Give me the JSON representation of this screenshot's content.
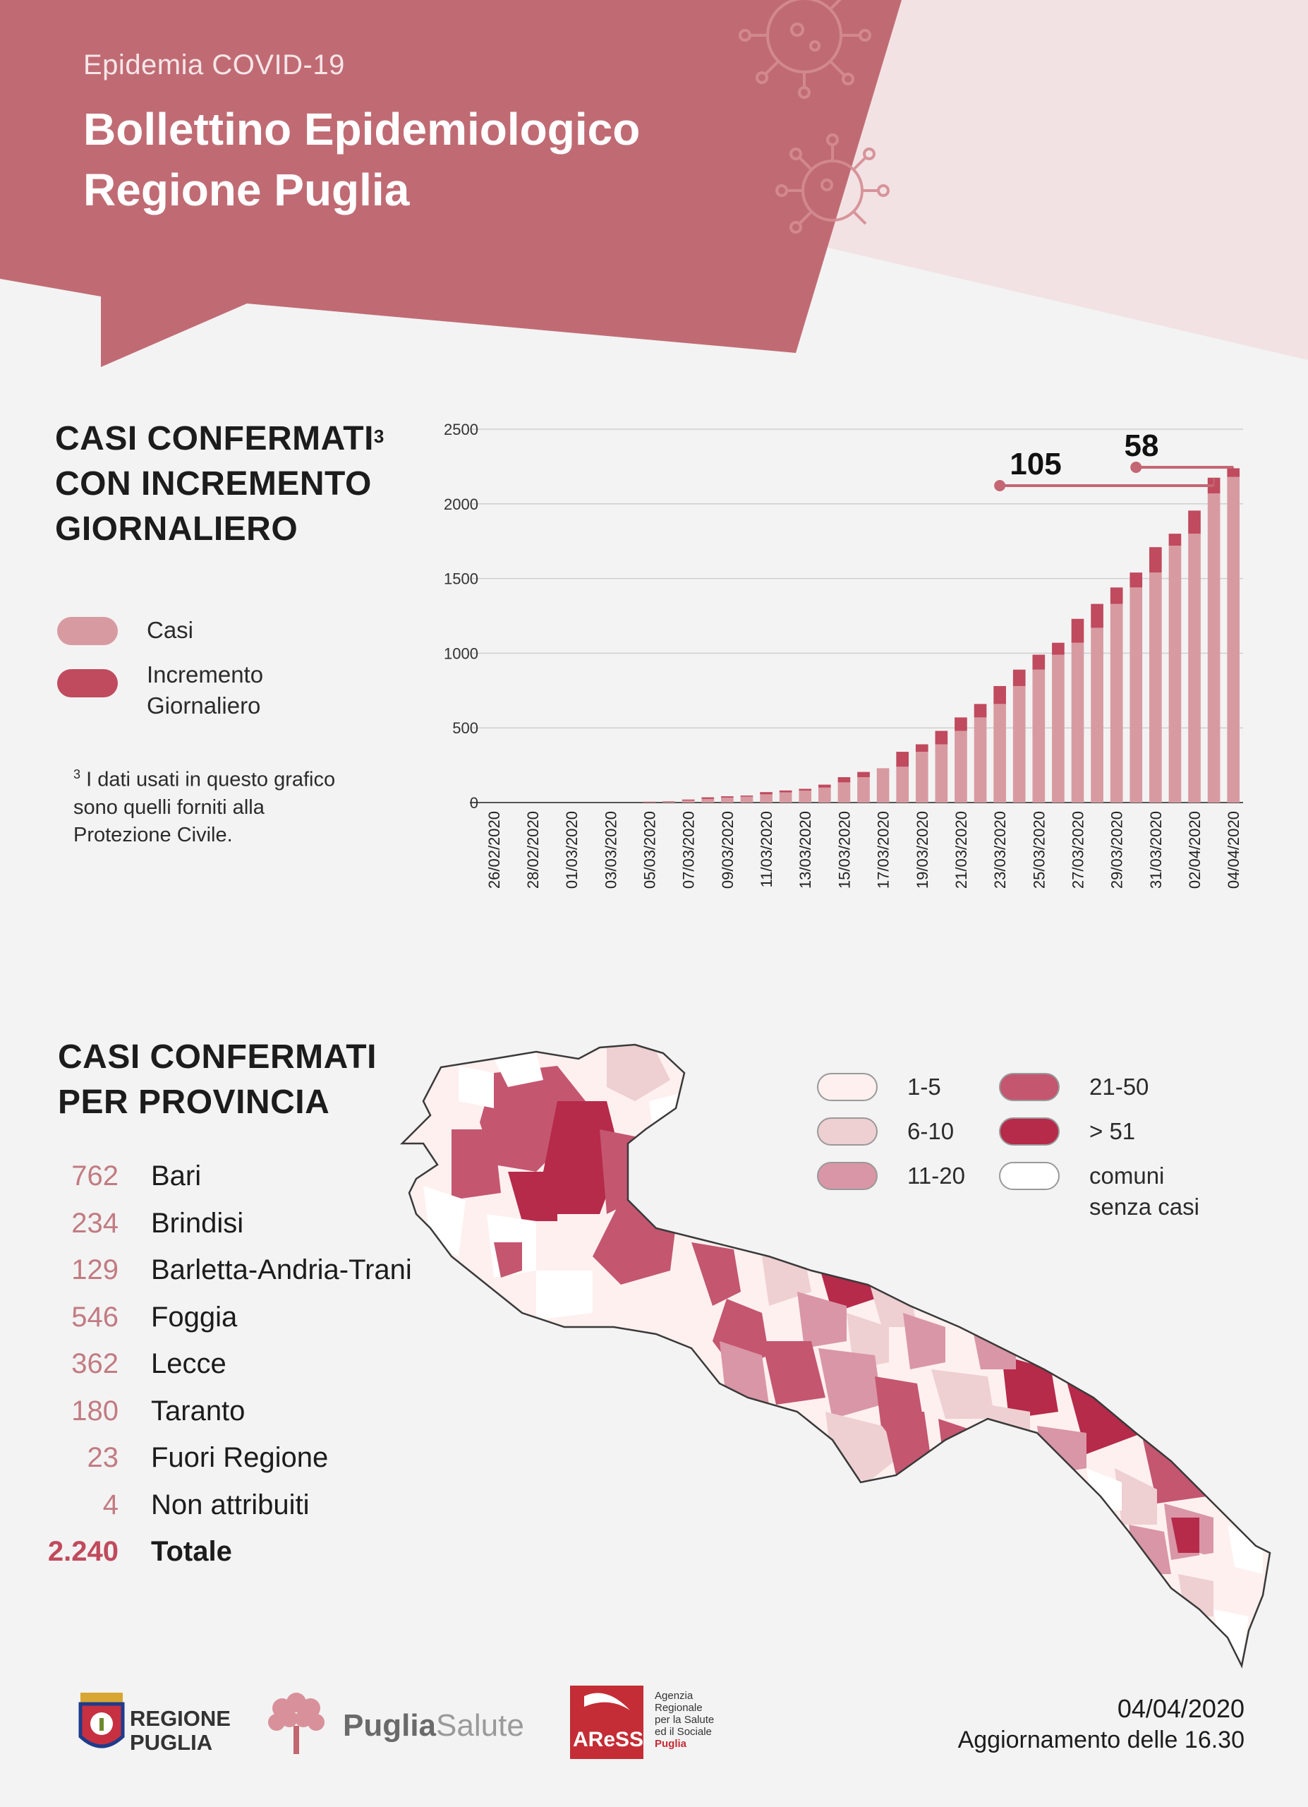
{
  "header": {
    "eyebrow": "Epidemia COVID-19",
    "title_line1": "Bollettino Epidemiologico",
    "title_line2": "Regione Puglia"
  },
  "colors": {
    "header_bg": "#c06b74",
    "header_accent": "#f2e2e3",
    "casi": "#d89aa1",
    "incremento": "#c04a5e",
    "grid": "#cfcfcf"
  },
  "section1": {
    "title_line1": "CASI CONFERMATI",
    "title_sup": "3",
    "title_line2": "CON INCREMENTO",
    "title_line3": "GIORNALIERO",
    "legend": [
      {
        "label": "Casi"
      },
      {
        "label_line1": "Incremento",
        "label_line2": "Giornaliero"
      }
    ],
    "footnote_sup": "3",
    "footnote_line1": "I dati usati in questo grafico",
    "footnote_line2": "sono quelli forniti alla",
    "footnote_line3": "Protezione Civile."
  },
  "chart_data": {
    "type": "bar",
    "stacked": true,
    "ylim": [
      0,
      2500
    ],
    "yticks": [
      0,
      500,
      1000,
      1500,
      2000,
      2500
    ],
    "grid": true,
    "x": [
      "26/02/2020",
      "27/02/2020",
      "28/02/2020",
      "29/02/2020",
      "01/03/2020",
      "02/03/2020",
      "03/03/2020",
      "04/03/2020",
      "05/03/2020",
      "06/03/2020",
      "07/03/2020",
      "08/03/2020",
      "09/03/2020",
      "10/03/2020",
      "11/03/2020",
      "12/03/2020",
      "13/03/2020",
      "14/03/2020",
      "15/03/2020",
      "16/03/2020",
      "17/03/2020",
      "18/03/2020",
      "19/03/2020",
      "20/03/2020",
      "21/03/2020",
      "22/03/2020",
      "23/03/2020",
      "24/03/2020",
      "25/03/2020",
      "26/03/2020",
      "27/03/2020",
      "28/03/2020",
      "29/03/2020",
      "30/03/2020",
      "31/03/2020",
      "01/04/2020",
      "02/04/2020",
      "03/04/2020",
      "04/04/2020"
    ],
    "x_tick_labels": [
      "26/02/2020",
      "28/02/2020",
      "01/03/2020",
      "03/03/2020",
      "05/03/2020",
      "07/03/2020",
      "09/03/2020",
      "11/03/2020",
      "13/03/2020",
      "15/03/2020",
      "17/03/2020",
      "19/03/2020",
      "21/03/2020",
      "23/03/2020",
      "25/03/2020",
      "27/03/2020",
      "29/03/2020",
      "31/03/2020",
      "02/04/2020",
      "04/04/2020"
    ],
    "series": [
      {
        "name": "Casi",
        "values": [
          0,
          0,
          0,
          0,
          0,
          0,
          0,
          0,
          3,
          6,
          13,
          24,
          33,
          40,
          55,
          68,
          80,
          100,
          135,
          170,
          230,
          240,
          340,
          390,
          480,
          570,
          660,
          780,
          890,
          990,
          1070,
          1170,
          1330,
          1440,
          1540,
          1720,
          1800,
          2070,
          2180
        ]
      },
      {
        "name": "Incremento Giornaliero",
        "values": [
          0,
          0,
          0,
          0,
          0,
          0,
          0,
          0,
          3,
          3,
          7,
          11,
          9,
          7,
          15,
          13,
          12,
          20,
          35,
          35,
          0,
          100,
          50,
          90,
          90,
          90,
          120,
          110,
          100,
          80,
          160,
          160,
          110,
          100,
          170,
          80,
          155,
          105,
          58
        ]
      }
    ],
    "annotations": [
      {
        "label": "105",
        "from_index": 26,
        "to_index": 37
      },
      {
        "label": "58",
        "from_index": 33,
        "to_index": 38
      }
    ]
  },
  "section2": {
    "title_line1": "CASI CONFERMATI",
    "title_line2": "PER PROVINCIA",
    "provinces": [
      {
        "count": "762",
        "name": "Bari"
      },
      {
        "count": "234",
        "name": "Brindisi"
      },
      {
        "count": "129",
        "name": "Barletta-Andria-Trani"
      },
      {
        "count": "546",
        "name": "Foggia"
      },
      {
        "count": "362",
        "name": "Lecce"
      },
      {
        "count": "180",
        "name": "Taranto"
      },
      {
        "count": "23",
        "name": "Fuori Regione"
      },
      {
        "count": "4",
        "name": "Non attribuiti"
      },
      {
        "count": "2.240",
        "name": "Totale"
      }
    ],
    "map_legend": [
      {
        "label": "1-5",
        "color": "#fdf0ef"
      },
      {
        "label": "6-10",
        "color": "#eecfd2"
      },
      {
        "label": "11-20",
        "color": "#d996a6"
      },
      {
        "label": "21-50",
        "color": "#c45670"
      },
      {
        "label": "> 51",
        "color": "#b62a4a"
      },
      {
        "label_line1": "comuni",
        "label_line2": "senza casi",
        "color": "#ffffff"
      }
    ]
  },
  "footer": {
    "logo1_line1": "REGIONE",
    "logo1_line2": "PUGLIA",
    "logo2_part1": "Puglia",
    "logo2_part2": "Salute",
    "logo3_short": "AReSS",
    "logo3_line1": "Agenzia",
    "logo3_line2": "Regionale",
    "logo3_line3": "per la Salute",
    "logo3_line4": "ed il Sociale",
    "logo3_line5": "Puglia",
    "date": "04/04/2020",
    "update": "Aggiornamento delle 16.30"
  }
}
